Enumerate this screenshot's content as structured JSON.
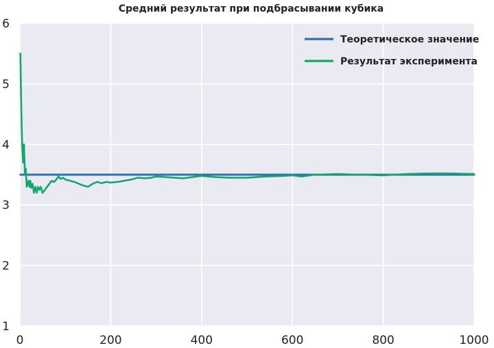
{
  "chart_data": {
    "type": "line",
    "title": "Средний результат при подбрасывании кубика",
    "xlabel": "",
    "ylabel": "",
    "xlim": [
      0,
      1000
    ],
    "ylim": [
      1,
      6
    ],
    "xticks": [
      0,
      200,
      400,
      600,
      800,
      1000
    ],
    "yticks": [
      1,
      2,
      3,
      4,
      5,
      6
    ],
    "xtick_labels": [
      "0",
      "200",
      "400",
      "600",
      "800",
      "1000"
    ],
    "ytick_labels": [
      "1",
      "2",
      "3",
      "4",
      "5",
      "6"
    ],
    "grid": true,
    "legend_position": "top-right",
    "background_color": "#eaeaf2",
    "series": [
      {
        "name": "Теоретическое значение",
        "color": "#3070b0",
        "x": [
          1,
          1000
        ],
        "y": [
          3.5,
          3.5
        ]
      },
      {
        "name": "Результат эксперимента",
        "color": "#13a86a",
        "x": [
          1,
          3,
          5,
          7,
          9,
          11,
          13,
          15,
          17,
          19,
          21,
          23,
          25,
          28,
          31,
          34,
          37,
          40,
          43,
          46,
          50,
          55,
          60,
          65,
          70,
          75,
          80,
          85,
          90,
          95,
          100,
          110,
          120,
          130,
          140,
          150,
          160,
          170,
          180,
          190,
          200,
          215,
          230,
          245,
          260,
          275,
          290,
          300,
          320,
          340,
          360,
          380,
          400,
          430,
          460,
          500,
          540,
          580,
          600,
          620,
          650,
          700,
          750,
          800,
          850,
          900,
          950,
          1000
        ],
        "y": [
          5.5,
          4.6,
          4.0,
          3.7,
          4.0,
          3.5,
          3.6,
          3.3,
          3.35,
          3.4,
          3.3,
          3.4,
          3.28,
          3.35,
          3.2,
          3.3,
          3.2,
          3.3,
          3.25,
          3.3,
          3.2,
          3.25,
          3.3,
          3.35,
          3.4,
          3.38,
          3.42,
          3.47,
          3.43,
          3.45,
          3.42,
          3.4,
          3.38,
          3.35,
          3.32,
          3.3,
          3.35,
          3.38,
          3.36,
          3.38,
          3.37,
          3.38,
          3.4,
          3.42,
          3.45,
          3.44,
          3.45,
          3.47,
          3.46,
          3.45,
          3.44,
          3.46,
          3.48,
          3.46,
          3.45,
          3.45,
          3.47,
          3.48,
          3.49,
          3.47,
          3.5,
          3.51,
          3.5,
          3.49,
          3.51,
          3.52,
          3.52,
          3.51
        ]
      }
    ]
  }
}
